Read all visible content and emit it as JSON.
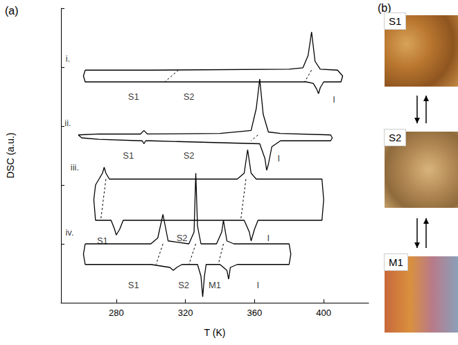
{
  "chart_data": {
    "type": "line",
    "title": "(a)",
    "x_label": "T (K)",
    "y_label": "DSC (a.u.)",
    "xlim": [
      248,
      426
    ],
    "xticks": [
      280,
      320,
      360,
      400
    ],
    "ylim": [
      0,
      100
    ],
    "yticks": [
      0,
      20,
      40,
      60,
      80,
      100
    ],
    "tick_labels": "x",
    "grid": false,
    "series": [
      {
        "color": "#000000",
        "line_style": "solid",
        "x": [
          262,
          300,
          380,
          388,
          391,
          393,
          395,
          398,
          408,
          411,
          410,
          400,
          398,
          397,
          396,
          394,
          390,
          300,
          262,
          261,
          262
        ],
        "values": [
          79,
          79,
          79.3,
          79.8,
          84,
          92,
          82,
          79.3,
          79,
          77,
          75,
          75,
          73,
          71,
          72.5,
          74.5,
          75,
          75,
          75,
          77,
          79
        ]
      },
      {
        "color": "#000000",
        "line_style": "solid",
        "x": [
          258,
          270,
          294,
          296,
          298,
          340,
          358,
          361,
          363,
          365,
          368,
          375,
          404,
          405,
          404,
          375,
          370,
          368,
          367,
          366,
          363,
          300,
          297,
          296,
          295,
          270,
          260,
          258
        ],
        "values": [
          57,
          57.3,
          57.3,
          58.5,
          57.3,
          57.5,
          58.5,
          66,
          76,
          64,
          58,
          57.5,
          57,
          56,
          55,
          55,
          53,
          47,
          45,
          49,
          54,
          55,
          55,
          54,
          55,
          55.5,
          56,
          57
        ]
      },
      {
        "color": "#000000",
        "line_style": "solid",
        "x": [
          270,
          272,
          273,
          274,
          276,
          300,
          350,
          354,
          356,
          358,
          361,
          399,
          400,
          399,
          362,
          360,
          358,
          357,
          354,
          300,
          284,
          282,
          280,
          279,
          277,
          268,
          267,
          268,
          270
        ],
        "values": [
          42,
          44,
          46,
          44,
          42,
          42,
          42,
          44,
          52,
          44,
          42,
          42,
          35,
          28,
          28,
          25,
          21,
          24,
          28,
          28,
          28,
          25,
          23,
          25,
          28,
          28,
          35,
          40,
          42
        ]
      },
      {
        "color": "#000000",
        "line_style": "solid",
        "x": [
          262,
          300,
          304,
          307,
          310,
          322,
          325,
          326,
          327,
          329,
          338,
          341,
          342,
          344,
          348,
          380,
          381,
          380,
          350,
          346,
          345,
          344,
          340,
          332,
          331,
          330,
          329,
          327,
          318,
          315,
          313,
          311,
          300,
          262,
          261,
          262
        ],
        "values": [
          20,
          20,
          22,
          30,
          21,
          20,
          24,
          44,
          26,
          20,
          20,
          24,
          28,
          21,
          20,
          20,
          16.5,
          13,
          13,
          12,
          8,
          11,
          13,
          13,
          9,
          2,
          9,
          13,
          13,
          12,
          11,
          12,
          13,
          13,
          16.5,
          20
        ]
      },
      {
        "color": "#000000",
        "line_style": "dashed",
        "x": [
          316,
          308
        ],
        "values": [
          79,
          75
        ]
      },
      {
        "color": "#000000",
        "line_style": "dashed",
        "x": [
          393,
          389
        ],
        "values": [
          79,
          75
        ]
      },
      {
        "color": "#000000",
        "line_style": "dashed",
        "x": [
          362,
          358
        ],
        "values": [
          57,
          55
        ]
      },
      {
        "color": "#000000",
        "line_style": "dashed",
        "x": [
          274,
          271
        ],
        "values": [
          42,
          28
        ]
      },
      {
        "color": "#000000",
        "line_style": "dashed",
        "x": [
          355,
          352
        ],
        "values": [
          42,
          28
        ]
      },
      {
        "color": "#000000",
        "line_style": "dashed",
        "x": [
          307,
          303
        ],
        "values": [
          20,
          13
        ]
      },
      {
        "color": "#000000",
        "line_style": "dashed",
        "x": [
          326,
          322
        ],
        "values": [
          20,
          13
        ]
      },
      {
        "color": "#000000",
        "line_style": "dashed",
        "x": [
          342,
          339
        ],
        "values": [
          20,
          13
        ]
      }
    ],
    "annotations": [
      {
        "text": "i.",
        "x": 252,
        "y": 83
      },
      {
        "text": "S1",
        "x": 290,
        "y": 70
      },
      {
        "text": "S2",
        "x": 322,
        "y": 70
      },
      {
        "text": "I",
        "x": 406,
        "y": 69
      },
      {
        "text": "ii.",
        "x": 252,
        "y": 61
      },
      {
        "text": "S1",
        "x": 287,
        "y": 50
      },
      {
        "text": "S2",
        "x": 322,
        "y": 50
      },
      {
        "text": "I",
        "x": 374,
        "y": 49
      },
      {
        "text": "iii.",
        "x": 256,
        "y": 46
      },
      {
        "text": "S1",
        "x": 272,
        "y": 21
      },
      {
        "text": "S2",
        "x": 318,
        "y": 22
      },
      {
        "text": "I",
        "x": 368,
        "y": 22
      },
      {
        "text": "iv.",
        "x": 253,
        "y": 24
      },
      {
        "text": "S1",
        "x": 290,
        "y": 6
      },
      {
        "text": "S2",
        "x": 319,
        "y": 6
      },
      {
        "text": "M1",
        "x": 337,
        "y": 6
      },
      {
        "text": "I",
        "x": 362,
        "y": 6
      }
    ]
  },
  "panel_b": {
    "label": "(b)",
    "images": [
      {
        "label": "S1"
      },
      {
        "label": "S2"
      },
      {
        "label": "M1"
      }
    ]
  }
}
